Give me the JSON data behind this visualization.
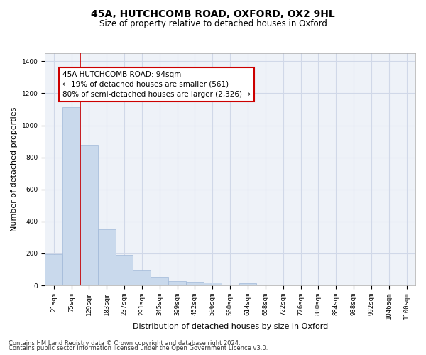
{
  "title1": "45A, HUTCHCOMB ROAD, OXFORD, OX2 9HL",
  "title2": "Size of property relative to detached houses in Oxford",
  "xlabel": "Distribution of detached houses by size in Oxford",
  "ylabel": "Number of detached properties",
  "bar_labels": [
    "21sqm",
    "75sqm",
    "129sqm",
    "183sqm",
    "237sqm",
    "291sqm",
    "345sqm",
    "399sqm",
    "452sqm",
    "506sqm",
    "560sqm",
    "614sqm",
    "668sqm",
    "722sqm",
    "776sqm",
    "830sqm",
    "884sqm",
    "938sqm",
    "992sqm",
    "1046sqm",
    "1100sqm"
  ],
  "bar_values": [
    195,
    1115,
    880,
    350,
    192,
    100,
    52,
    25,
    22,
    18,
    0,
    15,
    0,
    0,
    0,
    0,
    0,
    0,
    0,
    0,
    0
  ],
  "bar_color": "#c9d9ec",
  "bar_edgecolor": "#a0b8d8",
  "vline_x": 1.5,
  "vline_color": "#cc0000",
  "annotation_text": "45A HUTCHCOMB ROAD: 94sqm\n← 19% of detached houses are smaller (561)\n80% of semi-detached houses are larger (2,326) →",
  "annotation_box_color": "#ffffff",
  "annotation_box_edgecolor": "#cc0000",
  "ylim": [
    0,
    1450
  ],
  "yticks": [
    0,
    200,
    400,
    600,
    800,
    1000,
    1200,
    1400
  ],
  "grid_color": "#d0d8e8",
  "bg_color": "#eef2f8",
  "footnote1": "Contains HM Land Registry data © Crown copyright and database right 2024.",
  "footnote2": "Contains public sector information licensed under the Open Government Licence v3.0.",
  "title1_fontsize": 10,
  "title2_fontsize": 8.5,
  "annotation_fontsize": 7.5,
  "tick_fontsize": 6.5,
  "ylabel_fontsize": 8,
  "xlabel_fontsize": 8,
  "footnote_fontsize": 6
}
